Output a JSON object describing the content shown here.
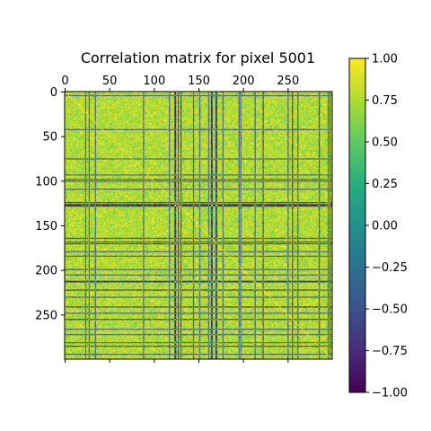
{
  "chart_data": {
    "type": "heatmap",
    "title": "Correlation matrix for pixel 5001",
    "rows": 300,
    "cols": 300,
    "xticks": [
      0,
      50,
      100,
      150,
      200,
      250
    ],
    "yticks": [
      0,
      50,
      100,
      150,
      200,
      250
    ],
    "xtick_position": "top",
    "colormap": "viridis",
    "colorbar": {
      "vmin": -1.0,
      "vmax": 1.0,
      "ticks": [
        1.0,
        0.75,
        0.5,
        0.25,
        0.0,
        -0.25,
        -0.5,
        -0.75,
        -1.0
      ],
      "tick_labels": [
        "1.00",
        "0.75",
        "0.50",
        "0.25",
        "0.00",
        "−0.25",
        "−0.50",
        "−0.75",
        "−1.00"
      ],
      "placement": "right"
    },
    "value_distribution": {
      "description": "mostly positive correlations near 0.8–1.0 with scattered strongly negative rows and columns",
      "notable_negative_rows": [
        124,
        127,
        164,
        170,
        222,
        241,
        255,
        285
      ],
      "notable_negative_cols": [
        124,
        127,
        130,
        164,
        170,
        222,
        255,
        285
      ]
    }
  }
}
